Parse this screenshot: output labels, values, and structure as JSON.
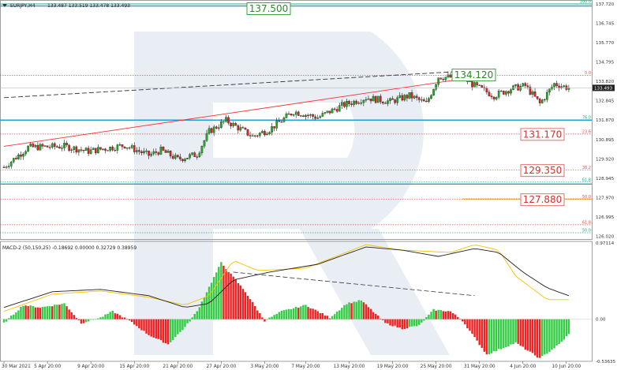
{
  "header": {
    "symbol_label": "EURJPY,H4",
    "ohlc": "133.487 133.519 133.478 133.493",
    "macd_label": "MACD-2 (50,150,25) -0.18692 0.00000 0.32729 0.38959"
  },
  "watermark": "R",
  "colors": {
    "bull": "#22aa22",
    "bear": "#dd2222",
    "fib_red": "#e05050",
    "fib_green": "#20b080",
    "blue_line": "#1fa0d8",
    "orange_line": "#f0a000",
    "trend_red": "#ff3030",
    "trend_dash": "#333333",
    "macd_line": "#222222",
    "signal_line": "#f5c200",
    "hist_bull": "#33cc44",
    "hist_bear": "#ee2222"
  },
  "chart_data": [
    {
      "type": "candlestick",
      "name": "price",
      "ylim": [
        126.0,
        137.72
      ],
      "y_ticks": [
        "137.720",
        "136.745",
        "135.770",
        "134.795",
        "133.820",
        "132.845",
        "131.870",
        "130.895",
        "129.920",
        "128.945",
        "127.970",
        "126.995",
        "126.020"
      ],
      "x_ticks": [
        "30 Mar 2021",
        "5 Apr 20:00",
        "9 Apr 20:00",
        "15 Apr 20:00",
        "21 Apr 20:00",
        "27 Apr 20:00",
        "3 May 20:00",
        "7 May 20:00",
        "13 May 20:00",
        "19 May 20:00",
        "25 May 20:00",
        "31 May 20:00",
        "4 Jun 20:00",
        "10 Jun 20:00"
      ],
      "candle_count": 235,
      "close_path": [
        {
          "i": 0,
          "v": 129.5
        },
        {
          "i": 10,
          "v": 130.5
        },
        {
          "i": 25,
          "v": 130.55
        },
        {
          "i": 35,
          "v": 130.3
        },
        {
          "i": 50,
          "v": 130.6
        },
        {
          "i": 60,
          "v": 130.1
        },
        {
          "i": 65,
          "v": 130.35
        },
        {
          "i": 72,
          "v": 129.9
        },
        {
          "i": 80,
          "v": 130.15
        },
        {
          "i": 85,
          "v": 131.3
        },
        {
          "i": 92,
          "v": 131.85
        },
        {
          "i": 103,
          "v": 131.05
        },
        {
          "i": 110,
          "v": 131.4
        },
        {
          "i": 120,
          "v": 132.3
        },
        {
          "i": 130,
          "v": 132.0
        },
        {
          "i": 140,
          "v": 132.6
        },
        {
          "i": 150,
          "v": 133.0
        },
        {
          "i": 160,
          "v": 132.8
        },
        {
          "i": 168,
          "v": 133.1
        },
        {
          "i": 175,
          "v": 132.7
        },
        {
          "i": 180,
          "v": 134.05
        },
        {
          "i": 190,
          "v": 134.0
        },
        {
          "i": 195,
          "v": 133.6
        },
        {
          "i": 203,
          "v": 133.1
        },
        {
          "i": 210,
          "v": 133.45
        },
        {
          "i": 216,
          "v": 133.6
        },
        {
          "i": 222,
          "v": 132.7
        },
        {
          "i": 228,
          "v": 133.7
        },
        {
          "i": 234,
          "v": 133.49
        }
      ],
      "current_price_label": "133.493",
      "current_price": 133.493,
      "levels": [
        {
          "label": "137.500",
          "value": 137.5,
          "style": "green-box"
        },
        {
          "label": "134.120",
          "value": 134.12,
          "style": "green-box"
        },
        {
          "label": "131.170",
          "value": 131.17,
          "style": "red-box"
        },
        {
          "label": "129.350",
          "value": 129.35,
          "style": "red-box"
        },
        {
          "label": "127.880",
          "value": 127.88,
          "style": "red-box"
        }
      ],
      "fib_lines": [
        {
          "label": "100.0",
          "value": 137.72,
          "color": "green",
          "solid": true
        },
        {
          "label": "0.0",
          "value": 134.12,
          "color": "red"
        },
        {
          "label": "76.0",
          "value": 131.87,
          "color": "green",
          "solid": true
        },
        {
          "label": "23.6",
          "value": 131.17,
          "color": "red"
        },
        {
          "label": "38.2",
          "value": 129.35,
          "color": "red"
        },
        {
          "label": "61.8",
          "value": 128.75,
          "color": "green"
        },
        {
          "label": "50.0",
          "value": 127.88,
          "color": "red"
        },
        {
          "label": "61.8",
          "value": 126.6,
          "color": "red"
        },
        {
          "label": "50.0",
          "value": 126.2,
          "color": "green"
        }
      ],
      "blue_lines": [
        137.62,
        131.87,
        128.65
      ],
      "orange_line": {
        "value": 127.9,
        "from_i": 190
      },
      "trendlines": [
        {
          "style": "red",
          "from": {
            "i": 0,
            "v": 130.55
          },
          "to": {
            "i": 200,
            "v": 134.12
          }
        },
        {
          "style": "dash",
          "from": {
            "i": 0,
            "v": 133.0
          },
          "to": {
            "i": 200,
            "v": 134.4
          }
        }
      ]
    },
    {
      "type": "macd",
      "name": "MACD-2",
      "ylim": [
        -0.53635,
        0.97114
      ],
      "y_ticks": [
        "0.97114",
        "0.00",
        "-0.53635"
      ],
      "hist_path": [
        {
          "i": 0,
          "v": -0.05
        },
        {
          "i": 8,
          "v": 0.18
        },
        {
          "i": 15,
          "v": 0.15
        },
        {
          "i": 25,
          "v": 0.2
        },
        {
          "i": 32,
          "v": -0.05
        },
        {
          "i": 40,
          "v": 0.02
        },
        {
          "i": 45,
          "v": 0.1
        },
        {
          "i": 52,
          "v": -0.02
        },
        {
          "i": 60,
          "v": -0.2
        },
        {
          "i": 68,
          "v": -0.32
        },
        {
          "i": 75,
          "v": -0.1
        },
        {
          "i": 80,
          "v": 0.1
        },
        {
          "i": 90,
          "v": 0.72
        },
        {
          "i": 100,
          "v": 0.35
        },
        {
          "i": 108,
          "v": -0.02
        },
        {
          "i": 115,
          "v": 0.1
        },
        {
          "i": 125,
          "v": 0.18
        },
        {
          "i": 135,
          "v": 0.02
        },
        {
          "i": 142,
          "v": 0.2
        },
        {
          "i": 148,
          "v": 0.24
        },
        {
          "i": 158,
          "v": -0.05
        },
        {
          "i": 165,
          "v": -0.12
        },
        {
          "i": 172,
          "v": -0.08
        },
        {
          "i": 178,
          "v": 0.12
        },
        {
          "i": 185,
          "v": 0.1
        },
        {
          "i": 190,
          "v": -0.02
        },
        {
          "i": 200,
          "v": -0.45
        },
        {
          "i": 212,
          "v": -0.3
        },
        {
          "i": 222,
          "v": -0.5
        },
        {
          "i": 230,
          "v": -0.32
        },
        {
          "i": 234,
          "v": -0.19
        }
      ],
      "macd_line_path": [
        {
          "i": 0,
          "v": 0.15
        },
        {
          "i": 20,
          "v": 0.35
        },
        {
          "i": 40,
          "v": 0.38
        },
        {
          "i": 60,
          "v": 0.3
        },
        {
          "i": 75,
          "v": 0.15
        },
        {
          "i": 85,
          "v": 0.2
        },
        {
          "i": 95,
          "v": 0.5
        },
        {
          "i": 110,
          "v": 0.6
        },
        {
          "i": 130,
          "v": 0.7
        },
        {
          "i": 150,
          "v": 0.92
        },
        {
          "i": 165,
          "v": 0.88
        },
        {
          "i": 180,
          "v": 0.8
        },
        {
          "i": 195,
          "v": 0.9
        },
        {
          "i": 205,
          "v": 0.85
        },
        {
          "i": 215,
          "v": 0.6
        },
        {
          "i": 225,
          "v": 0.4
        },
        {
          "i": 234,
          "v": 0.3
        }
      ],
      "signal_line_path": [
        {
          "i": 0,
          "v": 0.1
        },
        {
          "i": 20,
          "v": 0.32
        },
        {
          "i": 40,
          "v": 0.36
        },
        {
          "i": 60,
          "v": 0.28
        },
        {
          "i": 75,
          "v": 0.18
        },
        {
          "i": 85,
          "v": 0.3
        },
        {
          "i": 95,
          "v": 0.75
        },
        {
          "i": 105,
          "v": 0.62
        },
        {
          "i": 125,
          "v": 0.65
        },
        {
          "i": 150,
          "v": 0.95
        },
        {
          "i": 165,
          "v": 0.88
        },
        {
          "i": 185,
          "v": 0.85
        },
        {
          "i": 195,
          "v": 0.95
        },
        {
          "i": 205,
          "v": 0.88
        },
        {
          "i": 212,
          "v": 0.55
        },
        {
          "i": 225,
          "v": 0.25
        },
        {
          "i": 234,
          "v": 0.25
        }
      ],
      "trendline": {
        "from": {
          "i": 95,
          "v": 0.6
        },
        "to": {
          "i": 195,
          "v": 0.3
        }
      }
    }
  ]
}
